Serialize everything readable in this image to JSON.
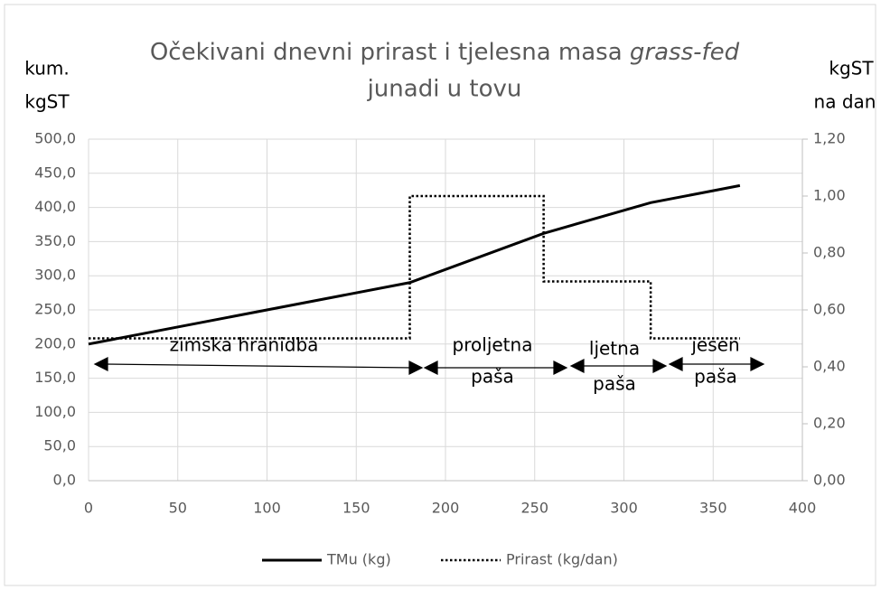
{
  "chart_data": {
    "type": "line",
    "title": {
      "line1": "Očekivani dnevni prirast i tjelesna masa",
      "italic": "grass-fed",
      "line2": "junadi u tovu"
    },
    "y_label": [
      "kum.",
      "kgST"
    ],
    "y2_label": [
      "kgST",
      "na dan"
    ],
    "xlim": [
      0,
      400
    ],
    "xticks": [
      0,
      50,
      100,
      150,
      200,
      250,
      300,
      350,
      400
    ],
    "ylim": [
      0,
      500
    ],
    "yticks": [
      {
        "value": 0,
        "label": "0,0"
      },
      {
        "value": 50,
        "label": "50,0"
      },
      {
        "value": 100,
        "label": "100,0"
      },
      {
        "value": 150,
        "label": "150,0"
      },
      {
        "value": 200,
        "label": "200,0"
      },
      {
        "value": 250,
        "label": "250,0"
      },
      {
        "value": 300,
        "label": "300,0"
      },
      {
        "value": 350,
        "label": "350,0"
      },
      {
        "value": 400,
        "label": "400,0"
      },
      {
        "value": 450,
        "label": "450,0"
      },
      {
        "value": 500,
        "label": "500,0"
      }
    ],
    "y2lim": [
      0,
      1.2
    ],
    "y2ticks": [
      {
        "value": 0,
        "label": "0,00"
      },
      {
        "value": 0.2,
        "label": "0,20"
      },
      {
        "value": 0.4,
        "label": "0,40"
      },
      {
        "value": 0.6,
        "label": "0,60"
      },
      {
        "value": 0.8,
        "label": "0,80"
      },
      {
        "value": 1.0,
        "label": "1,00"
      },
      {
        "value": 1.2,
        "label": "1,20"
      }
    ],
    "grid": true,
    "legend": "bottom",
    "series": [
      {
        "name": "TMu (kg)",
        "color": "#000000",
        "dash": "solid",
        "x": [
          0,
          180,
          255,
          315,
          365
        ],
        "values": [
          200,
          290,
          362,
          407,
          432
        ]
      },
      {
        "name": "Prirast (kg/dan)",
        "color": "#000000",
        "dash": "dotted",
        "axis": "y2",
        "x": [
          0,
          180,
          180,
          255,
          255,
          315,
          315,
          365
        ],
        "values": [
          0.5,
          0.5,
          1.0,
          1.0,
          0.7,
          0.7,
          0.5,
          0.5
        ]
      }
    ],
    "annotations": [
      [
        "zimska hranidba"
      ],
      [
        "proljetna",
        "paša"
      ],
      [
        "ljetna",
        "paša"
      ],
      [
        "jesen",
        "paša"
      ]
    ]
  }
}
